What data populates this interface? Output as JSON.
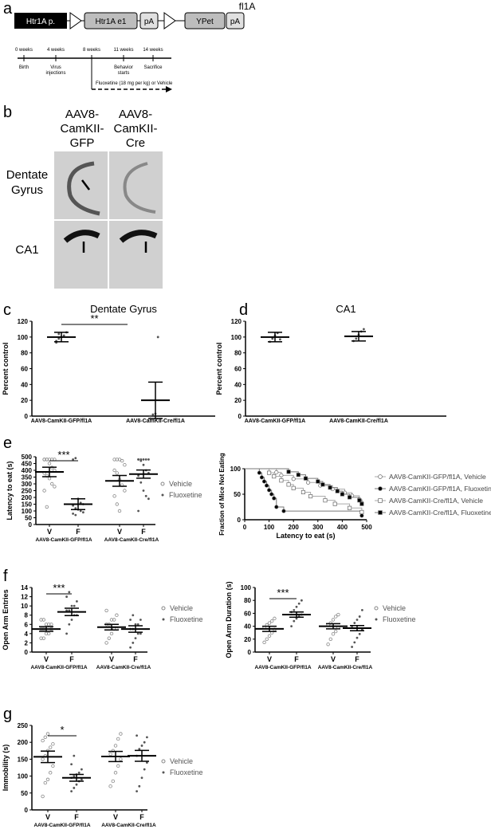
{
  "panel_letters": [
    "a",
    "b",
    "c",
    "d",
    "e",
    "f",
    "g"
  ],
  "construct": {
    "title": "fl1A",
    "promoter": "Htr1A p.",
    "exon": "Htr1A e1",
    "pA": "pA",
    "reporter": "YPet"
  },
  "timeline": {
    "weeks": [
      "0 weeks",
      "4 weeks",
      "8 weeks",
      "11 weeks",
      "14 weeks"
    ],
    "events": [
      "Birth",
      "Virus injections",
      "",
      "Behavior starts",
      "Sacrifice"
    ],
    "treatment": "Fluoxetine (18 mg per kg) or Vehicle"
  },
  "histology": {
    "col_headers": [
      "AAV8-CamKII-GFP",
      "AAV8-CamKII-Cre"
    ],
    "row_labels": [
      "Dentate Gyrus",
      "CA1"
    ]
  },
  "legend": {
    "vehicle": "Vehicle",
    "fluoxetine": "Fluoxetine"
  },
  "chart_data": [
    {
      "id": "c",
      "type": "scatter",
      "title": "Dentate Gyrus",
      "ylabel": "Percent control",
      "ylim": [
        0,
        120
      ],
      "yticks": [
        0,
        20,
        40,
        60,
        80,
        100,
        120
      ],
      "categories": [
        "AAV8-CamKII-GFP/fl1A",
        "AAV8-CamKII-Cre/fl1A"
      ],
      "mean": [
        100,
        20
      ],
      "sem": [
        6,
        23
      ],
      "points": [
        [
          95,
          98,
          100,
          102,
          106,
          93,
          104
        ],
        [
          0,
          2,
          3,
          100
        ]
      ],
      "significance": "**"
    },
    {
      "id": "d",
      "type": "scatter",
      "title": "CA1",
      "ylabel": "Percent control",
      "ylim": [
        0,
        120
      ],
      "yticks": [
        0,
        20,
        40,
        60,
        80,
        100,
        120
      ],
      "categories": [
        "AAV8-CamKII-GFP/fl1A",
        "AAV8-CamKII-Cre/fl1A"
      ],
      "mean": [
        100,
        101
      ],
      "sem": [
        6,
        6
      ],
      "points": [
        [
          94,
          98,
          102,
          105,
          97
        ],
        [
          95,
          98,
          103,
          107,
          110
        ]
      ]
    },
    {
      "id": "e-left",
      "type": "scatter",
      "ylabel": "Latency to eat (s)",
      "ylim": [
        0,
        500
      ],
      "yticks": [
        0,
        50,
        100,
        150,
        200,
        250,
        300,
        350,
        400,
        450,
        500
      ],
      "group_ticks": [
        "V",
        "F"
      ],
      "groups": [
        "AAV8-CamKII-GFP/fl1A",
        "AAV8-CamKII-Cre/fl1A"
      ],
      "mean": [
        [
          388,
          150
        ],
        [
          322,
          372
        ]
      ],
      "sem": [
        [
          35,
          40
        ],
        [
          40,
          30
        ]
      ],
      "points": [
        [
          [
            480,
            480,
            480,
            480,
            480,
            480,
            480,
            450,
            420,
            400,
            380,
            360,
            340,
            300,
            280,
            250,
            130
          ],
          [
            480,
            490,
            190,
            160,
            150,
            140,
            120,
            110,
            100,
            90,
            80,
            70
          ]
        ],
        [
          [
            480,
            480,
            480,
            470,
            440,
            400,
            380,
            330,
            290,
            250,
            210,
            150,
            100
          ],
          [
            480,
            480,
            480,
            480,
            480,
            480,
            470,
            440,
            400,
            380,
            360,
            310,
            250,
            210,
            190,
            100
          ]
        ]
      ],
      "significance": "***"
    },
    {
      "id": "e-right",
      "type": "line",
      "xlabel": "Latency to eat (s)",
      "ylabel": "Fraction of Mice Not Eating",
      "xlim": [
        0,
        500
      ],
      "ylim": [
        0,
        100
      ],
      "xticks": [
        0,
        100,
        200,
        300,
        400,
        500
      ],
      "yticks": [
        0,
        50,
        100
      ],
      "series": [
        {
          "name": "AAV8-CamKII-GFP/fl1A, Vehicle",
          "x": [
            0,
            130,
            150,
            200,
            260,
            310,
            360,
            410,
            440,
            470,
            480
          ],
          "y": [
            100,
            93,
            87,
            80,
            73,
            67,
            60,
            53,
            47,
            40,
            33
          ]
        },
        {
          "name": "AAV8-CamKII-GFP/fl1A, Fluoxetine",
          "x": [
            0,
            60,
            70,
            80,
            90,
            100,
            110,
            120,
            130,
            160,
            480
          ],
          "y": [
            100,
            92,
            83,
            75,
            67,
            58,
            50,
            42,
            25,
            17,
            8
          ]
        },
        {
          "name": "AAV8-CamKII-Cre/fl1A, Vehicle",
          "x": [
            0,
            100,
            120,
            150,
            180,
            200,
            240,
            270,
            330,
            370,
            430,
            480
          ],
          "y": [
            100,
            92,
            85,
            77,
            69,
            62,
            54,
            46,
            38,
            31,
            23,
            15
          ]
        },
        {
          "name": "AAV8-CamKII-Cre/fl1A, Fluoxetine",
          "x": [
            0,
            180,
            220,
            250,
            300,
            320,
            350,
            380,
            400,
            430,
            470,
            480
          ],
          "y": [
            100,
            94,
            88,
            81,
            75,
            69,
            63,
            56,
            50,
            44,
            38,
            31
          ]
        }
      ]
    },
    {
      "id": "f-left",
      "type": "scatter",
      "ylabel": "Open Arm Entries",
      "ylim": [
        0,
        14
      ],
      "yticks": [
        0,
        2,
        4,
        6,
        8,
        10,
        12,
        14
      ],
      "group_ticks": [
        "V",
        "F"
      ],
      "groups": [
        "AAV8-CamKII-GFP/fl1A",
        "AAV8-CamKII-Cre/fl1A"
      ],
      "mean": [
        [
          5,
          8.7
        ],
        [
          5.4,
          5
        ]
      ],
      "sem": [
        [
          0.5,
          0.8
        ],
        [
          0.6,
          0.7
        ]
      ],
      "points": [
        [
          [
            3,
            3,
            4,
            4,
            5,
            5,
            5,
            6,
            6,
            6,
            7,
            7
          ],
          [
            4,
            6,
            7,
            8,
            8,
            9,
            9,
            10,
            10,
            11,
            12,
            13
          ]
        ],
        [
          [
            2,
            3,
            4,
            5,
            5,
            6,
            6,
            7,
            7,
            8,
            9
          ],
          [
            1,
            2,
            3,
            4,
            4,
            5,
            5,
            6,
            6,
            7,
            7,
            8
          ]
        ]
      ],
      "significance": "***"
    },
    {
      "id": "f-right",
      "type": "scatter",
      "ylabel": "Open Arm Duration (s)",
      "ylim": [
        0,
        100
      ],
      "yticks": [
        0,
        20,
        40,
        60,
        80,
        100
      ],
      "group_ticks": [
        "V",
        "F"
      ],
      "groups": [
        "AAV8-CamKII-GFP/fl1A",
        "AAV8-CamKII-Cre/fl1A"
      ],
      "mean": [
        [
          36,
          58
        ],
        [
          40,
          37
        ]
      ],
      "sem": [
        [
          4,
          4
        ],
        [
          4,
          4
        ]
      ],
      "points": [
        [
          [
            15,
            20,
            25,
            30,
            35,
            38,
            42,
            45,
            48,
            52
          ],
          [
            40,
            48,
            52,
            55,
            58,
            62,
            65,
            70,
            75,
            80
          ]
        ],
        [
          [
            12,
            20,
            28,
            32,
            38,
            42,
            45,
            50,
            55,
            58
          ],
          [
            8,
            15,
            22,
            28,
            35,
            40,
            45,
            50,
            55,
            65
          ]
        ]
      ],
      "significance": "***"
    },
    {
      "id": "g",
      "type": "scatter",
      "ylabel": "Immobility (s)",
      "ylim": [
        0,
        250
      ],
      "yticks": [
        0,
        50,
        100,
        150,
        200,
        250
      ],
      "group_ticks": [
        "V",
        "F"
      ],
      "groups": [
        "AAV8-CamKII-GFP/fl1A",
        "AAV8-CamKII-Cre/fl1A"
      ],
      "mean": [
        [
          157,
          95
        ],
        [
          158,
          160
        ]
      ],
      "sem": [
        [
          17,
          10
        ],
        [
          15,
          16
        ]
      ],
      "points": [
        [
          [
            40,
            80,
            90,
            110,
            130,
            150,
            160,
            175,
            185,
            195,
            205,
            215,
            225
          ],
          [
            55,
            65,
            75,
            85,
            90,
            95,
            100,
            105,
            110,
            120,
            135,
            160
          ]
        ],
        [
          [
            70,
            85,
            110,
            130,
            150,
            165,
            175,
            190,
            210,
            225
          ],
          [
            55,
            70,
            95,
            120,
            140,
            160,
            180,
            190,
            200,
            215,
            220
          ]
        ]
      ],
      "significance": "*"
    }
  ]
}
